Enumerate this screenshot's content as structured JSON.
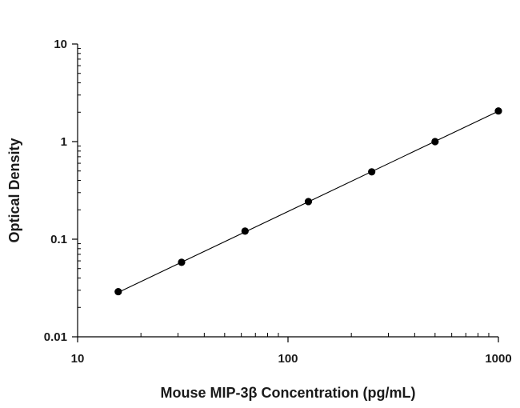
{
  "chart_data": {
    "type": "scatter",
    "title": "",
    "xlabel": "Mouse MIP-3β Concentration (pg/mL)",
    "ylabel": "Optical Density",
    "xscale": "log",
    "yscale": "log",
    "xlim": [
      10,
      1000
    ],
    "ylim": [
      0.01,
      10
    ],
    "x_ticks": [
      "10",
      "100",
      "1000"
    ],
    "y_ticks": [
      "0.01",
      "0.1",
      "1",
      "10"
    ],
    "grid": false,
    "legend": "none",
    "series": [
      {
        "x": [
          15.6,
          31.2,
          62.5,
          125,
          250,
          500,
          1000
        ],
        "y": [
          0.029,
          0.058,
          0.121,
          0.243,
          0.49,
          1.0,
          2.06
        ]
      }
    ],
    "fit_line": {
      "x": [
        15.6,
        1000
      ],
      "y": [
        0.0285,
        2.05
      ]
    },
    "colors": {
      "axis": "#000000",
      "marker": "#000000",
      "line": "#000000"
    }
  }
}
